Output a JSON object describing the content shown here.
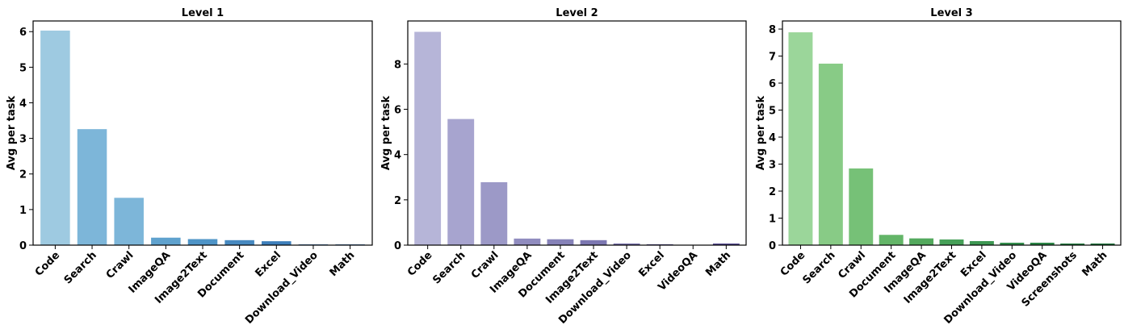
{
  "chart_data": [
    {
      "type": "bar",
      "title": "Level 1",
      "xlabel": "",
      "ylabel": "Avg per task",
      "ylim": [
        0,
        6.3
      ],
      "yticks": [
        0,
        1,
        2,
        3,
        4,
        5,
        6
      ],
      "categories": [
        "Code",
        "Search",
        "Crawl",
        "ImageQA",
        "Image2Text",
        "Document",
        "Excel",
        "Download_Video",
        "Math"
      ],
      "values": [
        6.03,
        3.26,
        1.33,
        0.21,
        0.17,
        0.14,
        0.11,
        0.02,
        0.02
      ],
      "colors": [
        "#9ecae1",
        "#7db6d9",
        "#7db6d9",
        "#5fa2ce",
        "#4e94c7",
        "#4789c0",
        "#3d7fbb",
        "#2f6eb0",
        "#2b65a6"
      ]
    },
    {
      "type": "bar",
      "title": "Level 2",
      "xlabel": "",
      "ylabel": "Avg per task",
      "ylim": [
        0,
        9.9
      ],
      "yticks": [
        0,
        2,
        4,
        6,
        8
      ],
      "categories": [
        "Code",
        "Search",
        "Crawl",
        "ImageQA",
        "Document",
        "Image2Text",
        "Download_Video",
        "Excel",
        "VideoQA",
        "Math"
      ],
      "values": [
        9.42,
        5.57,
        2.78,
        0.29,
        0.26,
        0.22,
        0.07,
        0.04,
        0.0,
        0.07
      ],
      "colors": [
        "#b6b5d8",
        "#a7a4cf",
        "#9c99c7",
        "#908cbf",
        "#8682b8",
        "#7c77b1",
        "#726ba8",
        "#675e9f",
        "#5c5297",
        "#51448e"
      ]
    },
    {
      "type": "bar",
      "title": "Level 3",
      "xlabel": "",
      "ylabel": "Avg per task",
      "ylim": [
        0,
        8.3
      ],
      "yticks": [
        0,
        1,
        2,
        3,
        4,
        5,
        6,
        7,
        8
      ],
      "categories": [
        "Code",
        "Search",
        "Crawl",
        "Document",
        "ImageQA",
        "Image2Text",
        "Excel",
        "Download_Video",
        "VideoQA",
        "Screenshots",
        "Math"
      ],
      "values": [
        7.88,
        6.72,
        2.84,
        0.38,
        0.25,
        0.21,
        0.15,
        0.09,
        0.09,
        0.06,
        0.06
      ],
      "colors": [
        "#9bd69a",
        "#88cb86",
        "#76c177",
        "#63b568",
        "#53a95d",
        "#46a058",
        "#3d9752",
        "#348d4c",
        "#2c8546",
        "#257c41",
        "#1f733b"
      ]
    }
  ]
}
